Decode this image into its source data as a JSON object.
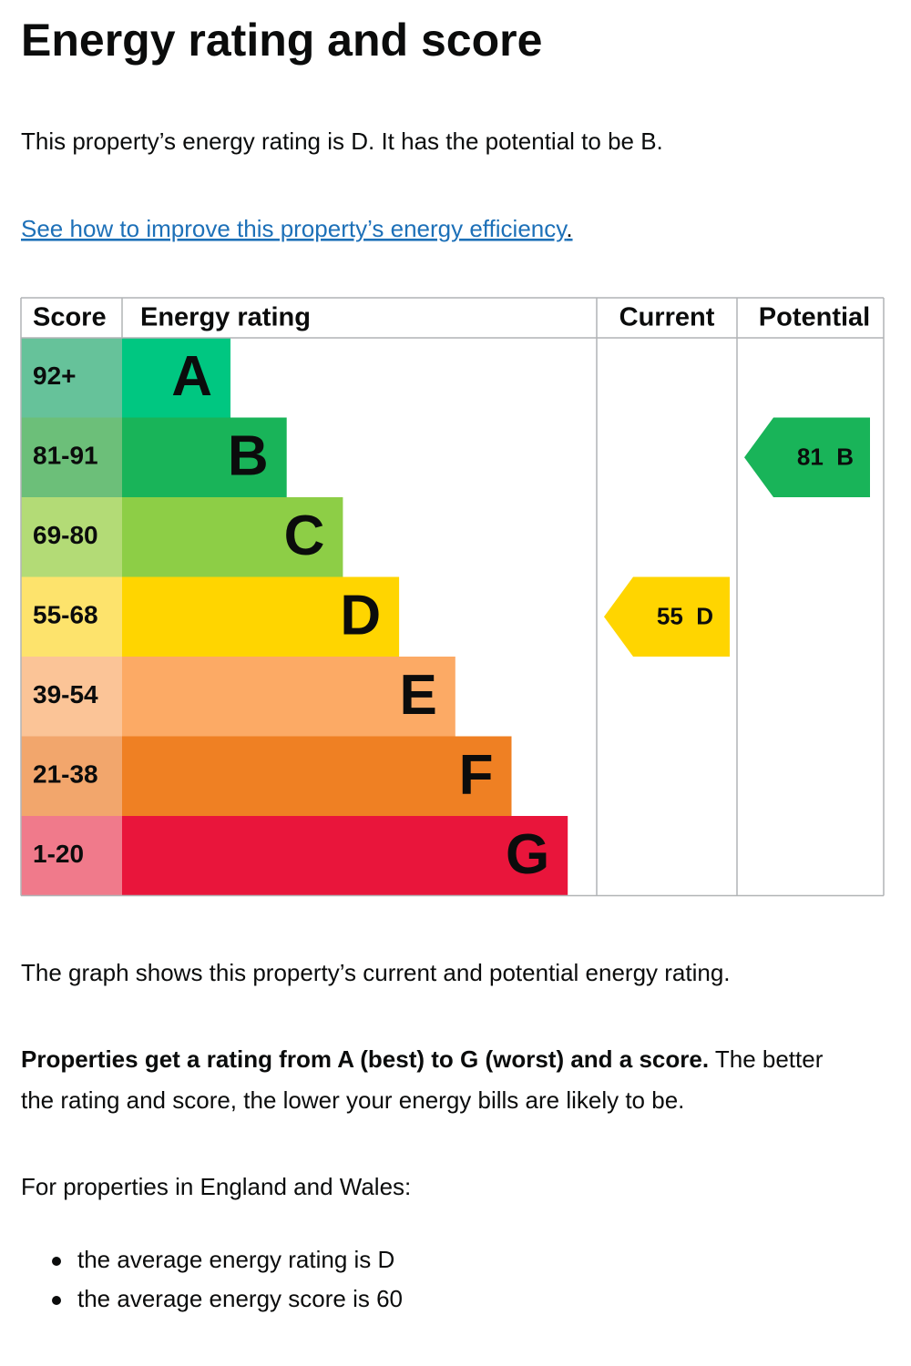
{
  "title": "Energy rating and score",
  "intro": "This property’s energy rating is D. It has the potential to be B.",
  "link": {
    "text": "See how to improve this property’s energy efficiency",
    "suffix": "."
  },
  "table": {
    "headers": [
      "Score",
      "Energy rating",
      "Current",
      "Potential"
    ],
    "rows": [
      {
        "score": "92+",
        "rating": "A",
        "score_color": "#66c29a",
        "color": "#00c781"
      },
      {
        "score": "81-91",
        "rating": "B",
        "score_color": "#6cbf79",
        "color": "#19b459"
      },
      {
        "score": "69-80",
        "rating": "C",
        "score_color": "#b3db76",
        "color": "#8dce46"
      },
      {
        "score": "55-68",
        "rating": "D",
        "score_color": "#fde36c",
        "color": "#ffd500"
      },
      {
        "score": "39-54",
        "rating": "E",
        "score_color": "#fbc497",
        "color": "#fcaa65"
      },
      {
        "score": "21-38",
        "rating": "F",
        "score_color": "#f2a66c",
        "color": "#ef8023"
      },
      {
        "score": "1-20",
        "rating": "G",
        "score_color": "#f07a8b",
        "color": "#e9153b"
      }
    ],
    "current": {
      "score": 55,
      "rating": "D"
    },
    "potential": {
      "score": 81,
      "rating": "B"
    }
  },
  "caption": "The graph shows this property’s current and potential energy rating.",
  "explanation": {
    "bold": "Properties get a rating from A (best) to G (worst) and a score.",
    "lines": [
      " The better",
      "the rating and score, the lower your energy bills are likely to be."
    ]
  },
  "region_intro": "For properties in England and Wales:",
  "bullets": [
    "the average energy rating is D",
    "the average energy score is 60"
  ]
}
